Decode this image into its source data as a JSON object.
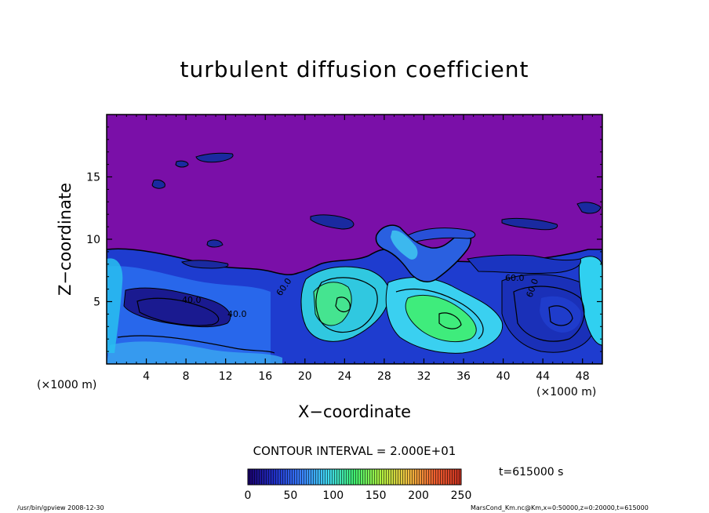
{
  "chart_data": {
    "type": "heatmap",
    "title": "turbulent diffusion coefficient",
    "xlabel": "X−coordinate",
    "ylabel": "Z−coordinate",
    "x_unit_left": "(×1000 m)",
    "x_unit_right": "(×1000 m)",
    "xlim": [
      0,
      50
    ],
    "ylim": [
      0,
      20
    ],
    "x_ticks": [
      4,
      8,
      12,
      16,
      20,
      24,
      28,
      32,
      36,
      40,
      44,
      48
    ],
    "x_tick_labels": [
      "4",
      "8",
      "12",
      "16",
      "20",
      "24",
      "28",
      "32",
      "36",
      "40",
      "44",
      "48"
    ],
    "y_ticks": [
      5,
      10,
      15
    ],
    "y_tick_labels": [
      "5",
      "10",
      "15"
    ],
    "contour_interval": "CONTOUR INTERVAL = 2.000E+01",
    "contour_labels": [
      "40.0",
      "40.0",
      "60.0",
      "60.0",
      "60.0"
    ],
    "colorbar": {
      "min": 0,
      "max": 250,
      "ticks": [
        0,
        50,
        100,
        150,
        200,
        250
      ],
      "tick_labels": [
        "0",
        "50",
        "100",
        "150",
        "200",
        "250"
      ],
      "colors": [
        "#1a006e",
        "#2030c8",
        "#3a80ff",
        "#40d8f0",
        "#40f070",
        "#b0f040",
        "#f0c040",
        "#f06030",
        "#c83020"
      ]
    },
    "background_color": "#7a0fa8",
    "time": "t=615000 s"
  },
  "footer": {
    "left": "/usr/bin/gpview   2008-12-30",
    "right": "MarsCond_Km.nc@Km,x=0:50000,z=0:20000,t=615000"
  }
}
